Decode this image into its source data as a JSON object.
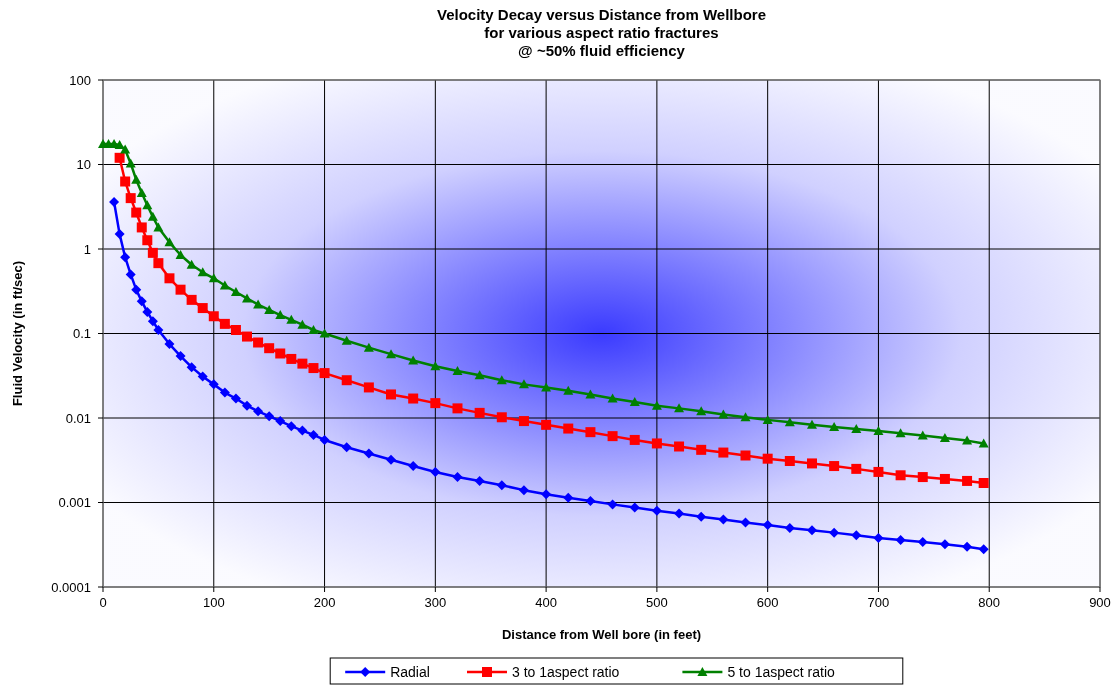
{
  "chart_data": {
    "type": "line",
    "title": "Velocity Decay versus Distance from Wellbore\nfor various aspect ratio fractures\n@ ~50% fluid efficiency",
    "xlabel": "Distance from Well bore (in feet)",
    "ylabel": "Fluid Velocity (in ft/sec)",
    "log": "y",
    "grid": true,
    "legend": "bottom",
    "line_style": "solid",
    "xlim": [
      0,
      900
    ],
    "xticks": [
      0,
      100,
      200,
      300,
      400,
      500,
      600,
      700,
      800,
      900
    ],
    "ylim": [
      0.0001,
      100
    ],
    "yticks": [
      0.0001,
      0.001,
      0.01,
      0.1,
      1,
      10,
      100
    ],
    "x": [
      0,
      5,
      10,
      15,
      20,
      25,
      30,
      35,
      40,
      45,
      50,
      60,
      70,
      80,
      90,
      100,
      110,
      120,
      130,
      140,
      150,
      160,
      170,
      180,
      190,
      200,
      220,
      240,
      260,
      280,
      300,
      320,
      340,
      360,
      380,
      400,
      420,
      440,
      460,
      480,
      500,
      520,
      540,
      560,
      580,
      600,
      620,
      640,
      660,
      680,
      700,
      720,
      740,
      760,
      780,
      795
    ],
    "series": [
      {
        "name": "Radial",
        "color": "#0000ff",
        "marker": "diamond",
        "values": [
          null,
          null,
          3.6,
          1.5,
          0.8,
          0.5,
          0.33,
          0.24,
          0.18,
          0.14,
          0.11,
          0.075,
          0.054,
          0.04,
          0.031,
          0.025,
          0.02,
          0.017,
          0.014,
          0.012,
          0.0105,
          0.0092,
          0.008,
          0.0071,
          0.0063,
          0.0055,
          0.0045,
          0.0038,
          0.0032,
          0.0027,
          0.0023,
          0.002,
          0.0018,
          0.0016,
          0.0014,
          0.00125,
          0.00114,
          0.00104,
          0.00095,
          0.00087,
          0.0008,
          0.00074,
          0.00068,
          0.00063,
          0.00058,
          0.00054,
          0.0005,
          0.00047,
          0.00044,
          0.00041,
          0.00038,
          0.00036,
          0.00034,
          0.00032,
          0.0003,
          0.00028
        ]
      },
      {
        "name": "3 to 1aspect ratio",
        "color": "#ff0000",
        "marker": "square",
        "values": [
          null,
          null,
          null,
          12,
          6.3,
          4,
          2.7,
          1.8,
          1.27,
          0.9,
          0.68,
          0.45,
          0.33,
          0.25,
          0.2,
          0.16,
          0.13,
          0.11,
          0.092,
          0.078,
          0.067,
          0.058,
          0.05,
          0.044,
          0.039,
          0.034,
          0.028,
          0.023,
          0.019,
          0.017,
          0.015,
          0.013,
          0.0115,
          0.0102,
          0.0092,
          0.0083,
          0.0075,
          0.0068,
          0.0061,
          0.0055,
          0.005,
          0.0046,
          0.0042,
          0.0039,
          0.0036,
          0.0033,
          0.0031,
          0.0029,
          0.0027,
          0.0025,
          0.0023,
          0.0021,
          0.002,
          0.0019,
          0.0018,
          0.0017
        ]
      },
      {
        "name": "5 to 1aspect ratio",
        "color": "#008000",
        "marker": "triangle",
        "values": [
          17.5,
          17.5,
          17.5,
          17,
          15,
          10.3,
          6.6,
          4.6,
          3.3,
          2.4,
          1.8,
          1.2,
          0.85,
          0.65,
          0.53,
          0.45,
          0.37,
          0.31,
          0.26,
          0.22,
          0.19,
          0.165,
          0.145,
          0.127,
          0.11,
          0.1,
          0.082,
          0.068,
          0.057,
          0.048,
          0.041,
          0.036,
          0.032,
          0.028,
          0.025,
          0.023,
          0.021,
          0.019,
          0.017,
          0.0155,
          0.014,
          0.013,
          0.012,
          0.011,
          0.0102,
          0.0095,
          0.0089,
          0.0083,
          0.0078,
          0.0074,
          0.007,
          0.0066,
          0.0062,
          0.0058,
          0.0054,
          0.005
        ]
      }
    ]
  }
}
